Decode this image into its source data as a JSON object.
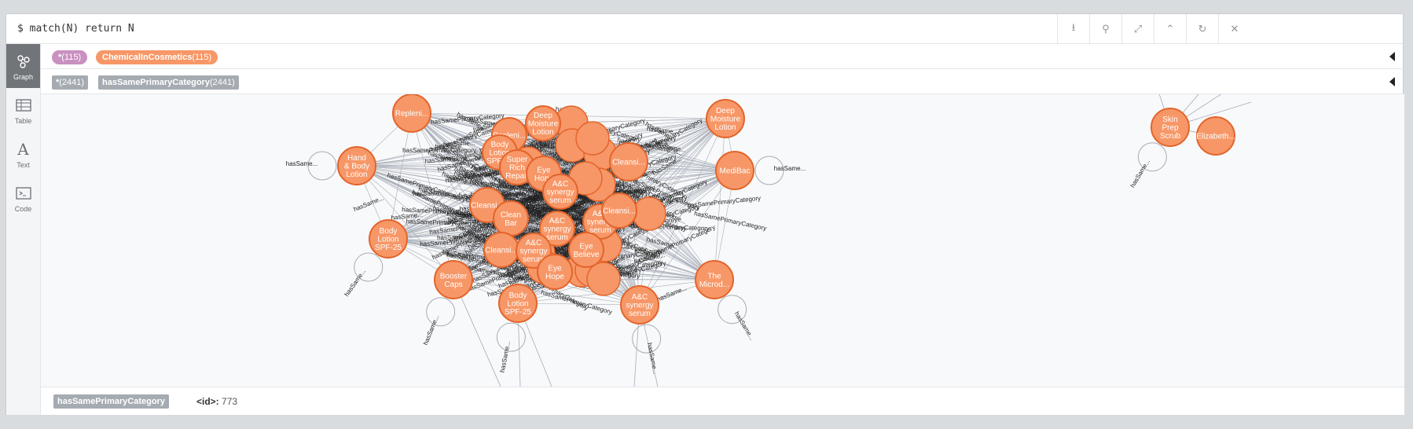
{
  "query": {
    "text": "$ match(N) return N"
  },
  "toolbar": {
    "buttons": [
      {
        "name": "download-icon",
        "glyph": "⭳"
      },
      {
        "name": "pin-icon",
        "glyph": "⚲"
      },
      {
        "name": "expand-icon",
        "glyph": "⤢"
      },
      {
        "name": "collapse-icon",
        "glyph": "⌃"
      },
      {
        "name": "refresh-icon",
        "glyph": "↻"
      },
      {
        "name": "close-icon",
        "glyph": "✕"
      }
    ]
  },
  "sidebar": {
    "items": [
      {
        "label": "Graph",
        "icon": "graph-icon",
        "active": true
      },
      {
        "label": "Table",
        "icon": "table-icon"
      },
      {
        "label": "Text",
        "icon": "text-icon"
      },
      {
        "label": "Code",
        "icon": "code-icon"
      }
    ]
  },
  "legend": {
    "nodes": [
      {
        "label": "*",
        "count": "(115)",
        "color": "#c990c0"
      },
      {
        "label": "ChemicalInCosmetics",
        "count": "(115)",
        "color": "#f79767"
      }
    ],
    "relationships": [
      {
        "label": "*",
        "count": "(2441)"
      },
      {
        "label": "hasSamePrimaryCategory",
        "count": "(2441)"
      }
    ]
  },
  "graph": {
    "node_color": "#f79767",
    "node_border": "#e3642b",
    "edge_color": "#a5abb6",
    "edge_label": "hasSame...",
    "rel_label": "hasSamePrimaryCategory",
    "nodes": [
      {
        "text": [
          "Repleni..."
        ]
      },
      {
        "text": [
          "Hand",
          "& Body",
          "Lotion"
        ]
      },
      {
        "text": [
          "Body",
          "Lotion",
          "SPF-25"
        ]
      },
      {
        "text": [
          "Booster",
          "Caps"
        ]
      },
      {
        "text": [
          "Body",
          "Lotion",
          "SPF-25"
        ]
      },
      {
        "text": [
          "A&C",
          "synergy",
          "serum"
        ]
      },
      {
        "text": [
          "The",
          "Microd..."
        ]
      },
      {
        "text": [
          "MediBac"
        ]
      },
      {
        "text": [
          "Deep",
          "Moisture",
          "Lotion"
        ]
      },
      {
        "text": [
          "Deep",
          "Moisture",
          "Lotion"
        ]
      },
      {
        "text": [
          "Repleni..."
        ]
      },
      {
        "text": [
          "Body",
          "Lotion",
          "SPF-25"
        ]
      },
      {
        "text": [
          "Super",
          "Rich",
          "Repair"
        ]
      },
      {
        "text": [
          "Eye",
          "Hope"
        ]
      },
      {
        "text": [
          "A&C",
          "synergy",
          "serum"
        ]
      },
      {
        "text": [
          "Cleansi..."
        ]
      },
      {
        "text": [
          "Clean",
          "Bar"
        ]
      },
      {
        "text": [
          "A&C",
          "synergy",
          "serum"
        ]
      },
      {
        "text": [
          "A&C",
          "synergy",
          "serum"
        ]
      },
      {
        "text": [
          "Cleansi..."
        ]
      },
      {
        "text": [
          "A&C",
          "synergy",
          "serum"
        ]
      },
      {
        "text": [
          "Eye",
          "Believe"
        ]
      },
      {
        "text": [
          "Eye",
          "Hope"
        ]
      },
      {
        "text": [
          "Cleansi..."
        ]
      },
      {
        "text": [
          "Cleansi..."
        ]
      },
      {
        "text": [
          "Skin",
          "Prep",
          "Scrub"
        ]
      },
      {
        "text": [
          "Elizabeth..."
        ]
      }
    ]
  },
  "status": {
    "rel_type": "hasSamePrimaryCategory",
    "id_label": "<id>:",
    "id_value": "773"
  }
}
